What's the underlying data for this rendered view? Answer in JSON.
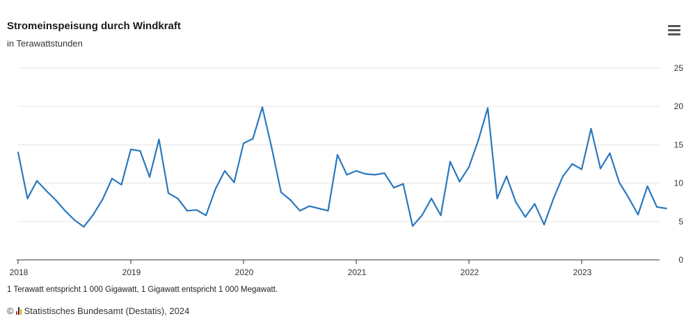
{
  "header": {
    "title": "Stromeinspeisung durch Windkraft",
    "subtitle": "in Terawattstunden"
  },
  "footer": {
    "footnote": "1 Terawatt entspricht 1 000 Gigawatt, 1 Gigawatt entspricht 1 000 Megawatt.",
    "copyright_symbol": "©",
    "source": "Statistisches Bundesamt (Destatis), 2024"
  },
  "menu_icon": "hamburger-menu-icon",
  "colors": {
    "line": "#2a78bd",
    "grid": "#e6e6e6",
    "axis": "#333333"
  },
  "chart_data": {
    "type": "line",
    "title": "Stromeinspeisung durch Windkraft",
    "subtitle": "in Terawattstunden",
    "xlabel": "",
    "ylabel": "",
    "y_axis_position": "right",
    "ylim": [
      0,
      25
    ],
    "yticks": [
      0,
      5,
      10,
      15,
      20,
      25
    ],
    "xticks": [
      "2018",
      "2019",
      "2020",
      "2021",
      "2022",
      "2023"
    ],
    "grid": true,
    "series": [
      {
        "values": [
          14.0,
          8.0,
          10.3,
          9.0,
          7.8,
          6.4,
          5.2,
          4.3,
          5.9,
          7.9,
          10.6,
          9.8,
          14.4,
          14.2,
          10.8,
          15.7,
          8.7,
          8.0,
          6.4,
          6.5,
          5.8,
          9.2,
          11.6,
          10.1,
          15.2,
          15.8,
          19.9,
          14.6,
          8.8,
          7.8,
          6.4,
          7.0,
          6.7,
          6.4,
          13.7,
          11.1,
          11.6,
          11.2,
          11.1,
          11.3,
          9.4,
          9.9,
          4.4,
          5.8,
          8.0,
          5.8,
          12.8,
          10.2,
          12.1,
          15.6,
          19.8,
          8.0,
          10.9,
          7.5,
          5.6,
          7.3,
          4.6,
          8.0,
          10.9,
          12.5,
          11.8,
          17.1,
          11.9,
          13.9,
          10.1,
          8.1,
          5.9,
          9.6,
          6.9,
          6.7
        ]
      }
    ]
  }
}
